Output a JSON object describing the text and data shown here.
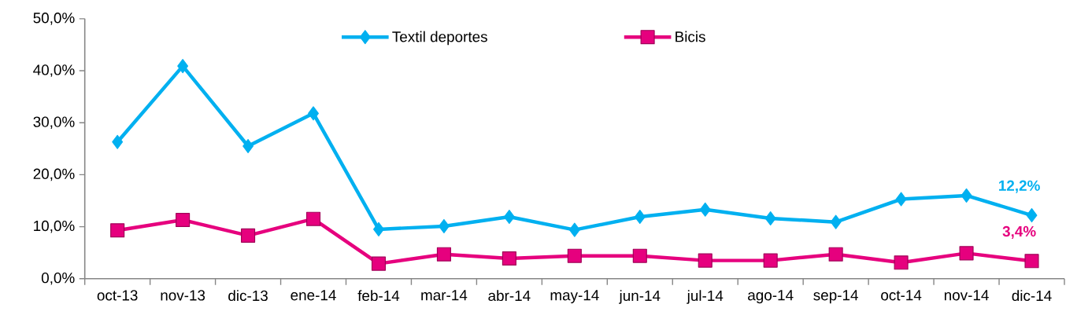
{
  "chart_data": {
    "type": "line",
    "categories": [
      "oct-13",
      "nov-13",
      "dic-13",
      "ene-14",
      "feb-14",
      "mar-14",
      "abr-14",
      "may-14",
      "jun-14",
      "jul-14",
      "ago-14",
      "sep-14",
      "oct-14",
      "nov-14",
      "dic-14"
    ],
    "series": [
      {
        "name": "Textil deportes",
        "color": "#00b0f0",
        "marker": "diamond",
        "values": [
          26.3,
          40.9,
          25.5,
          31.8,
          9.5,
          10.1,
          11.9,
          9.4,
          11.9,
          13.3,
          11.6,
          10.9,
          15.3,
          16.0,
          12.2
        ],
        "value_labels": [
          null,
          null,
          null,
          null,
          null,
          null,
          null,
          null,
          null,
          null,
          null,
          null,
          null,
          null,
          "12,2%"
        ]
      },
      {
        "name": "Bicis",
        "color": "#e6007e",
        "marker": "square",
        "values": [
          9.3,
          11.3,
          8.3,
          11.5,
          2.9,
          4.7,
          3.9,
          4.4,
          4.4,
          3.5,
          3.5,
          4.7,
          3.1,
          4.9,
          3.4
        ],
        "value_labels": [
          null,
          null,
          null,
          null,
          null,
          null,
          null,
          null,
          null,
          null,
          null,
          null,
          null,
          null,
          "3,4%"
        ]
      }
    ],
    "ylim": [
      0,
      50
    ],
    "yticks": [
      {
        "value": 0,
        "label": "0,0%"
      },
      {
        "value": 10,
        "label": "10,0%"
      },
      {
        "value": 20,
        "label": "20,0%"
      },
      {
        "value": 30,
        "label": "30,0%"
      },
      {
        "value": 40,
        "label": "40,0%"
      },
      {
        "value": 50,
        "label": "50,0%"
      }
    ],
    "legend": "top",
    "grid": false,
    "line_style": "solid"
  }
}
